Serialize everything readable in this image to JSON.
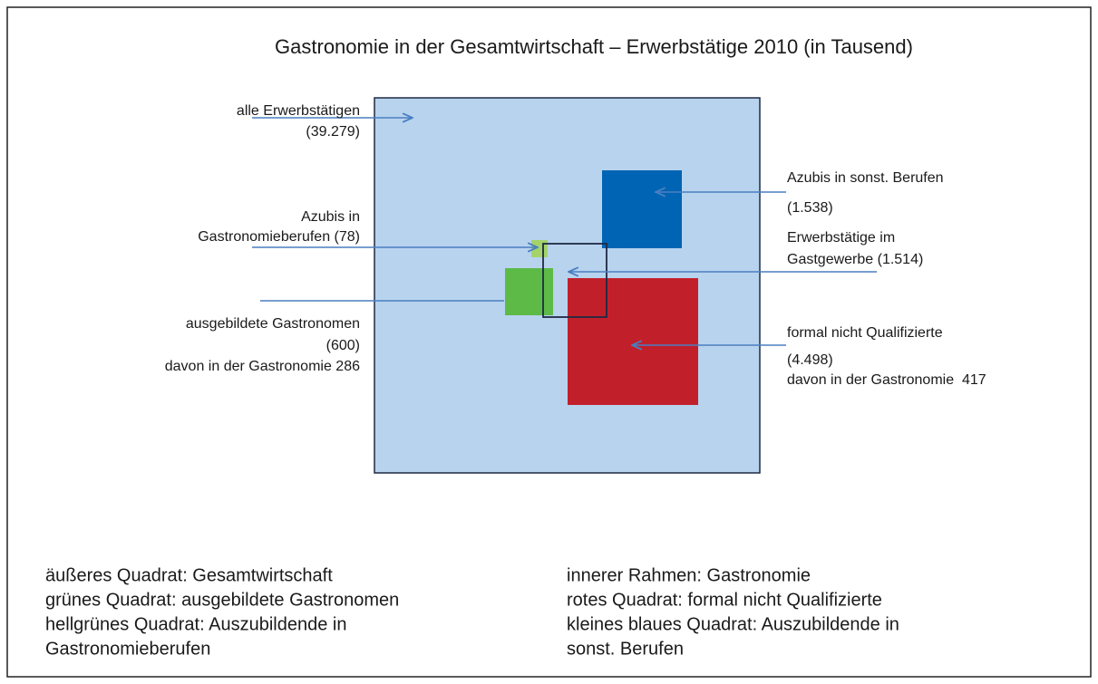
{
  "title": "Gastronomie in der Gesamtwirtschaft – Erwerbstätige 2010 (in Tausend)",
  "labels": {
    "all": [
      "alle Erwerbstätigen",
      "(39.279)"
    ],
    "azubis_gastro": [
      "Azubis in",
      "Gastronomieberufen (78)"
    ],
    "ausgebildete": [
      "ausgebildete Gastronomen",
      "(600)",
      "davon in der Gastronomie 286"
    ],
    "azubis_sonst": [
      "Azubis in sonst. Berufen",
      "(1.538)"
    ],
    "gastgewerbe": [
      "Erwerbstätige im",
      "Gastgewerbe (1.514)"
    ],
    "unqualifiziert": [
      "formal nicht Qualifizierte",
      "(4.498)",
      "davon in der Gastronomie  417"
    ]
  },
  "legend": {
    "left": [
      "äußeres Quadrat: Gesamtwirtschaft",
      "grünes Quadrat: ausgebildete Gastronomen",
      "hellgrünes Quadrat: Auszubildende in",
      "Gastronomieberufen"
    ],
    "right": [
      "innerer Rahmen: Gastronomie",
      "rotes Quadrat: formal nicht Qualifizierte",
      "kleines blaues Quadrat: Auszubildende in",
      "sonst. Berufen"
    ]
  }
}
